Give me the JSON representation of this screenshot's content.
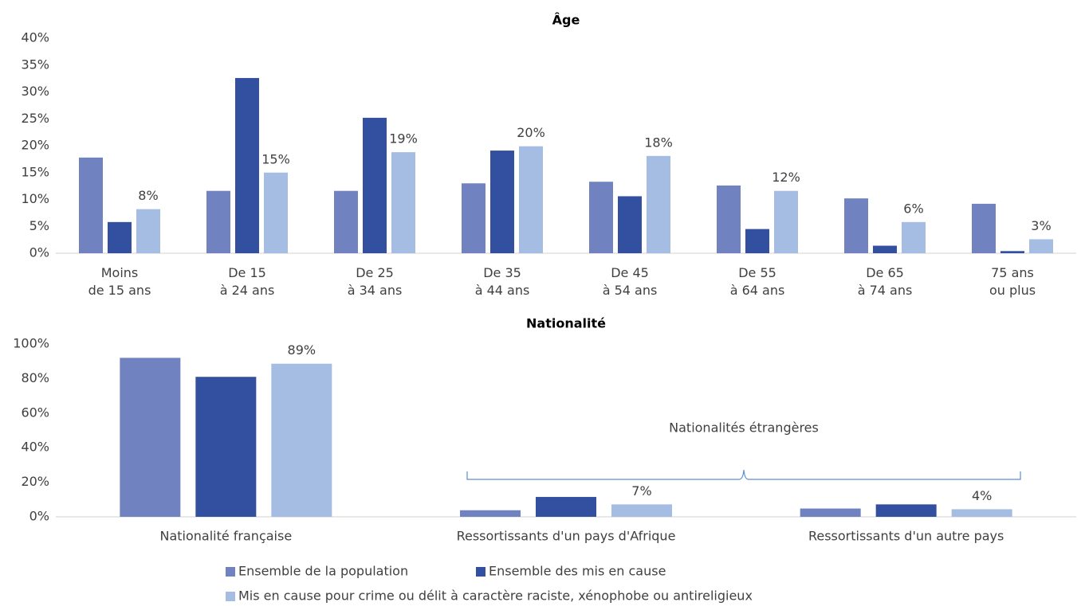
{
  "chart_data": [
    {
      "type": "bar",
      "title": "Âge",
      "categories": [
        "Moins\nde 15 ans",
        "De 15\nà 24 ans",
        "De 25\nà 34 ans",
        "De 35\nà 44 ans",
        "De 45\nà 54 ans",
        "De 55\nà 64 ans",
        "De 65\nà 74 ans",
        "75 ans\nou plus"
      ],
      "series": [
        {
          "name": "Ensemble de la population",
          "color": "#7082bf",
          "values": [
            17.8,
            11.6,
            11.6,
            13,
            13.3,
            12.6,
            10.2,
            9.2
          ]
        },
        {
          "name": "Ensemble des mis en cause",
          "color": "#334f9f",
          "values": [
            5.8,
            32.6,
            25.2,
            19.1,
            10.6,
            4.5,
            1.4,
            0.4
          ]
        },
        {
          "name": "Mis en cause pour crime ou délit à caractère raciste, xénophobe ou antireligieux",
          "color": "#a5bde3",
          "values": [
            8.2,
            15,
            18.8,
            19.9,
            18.1,
            11.6,
            5.8,
            2.6
          ],
          "value_labels": [
            "8%",
            "15%",
            "19%",
            "20%",
            "18%",
            "12%",
            "6%",
            "3%"
          ]
        }
      ],
      "ylim": [
        0,
        40
      ],
      "yticks": [
        {
          "value": 0,
          "label": "0%"
        },
        {
          "value": 5,
          "label": "5%"
        },
        {
          "value": 10,
          "label": "10%"
        },
        {
          "value": 15,
          "label": "15%"
        },
        {
          "value": 20,
          "label": "20%"
        },
        {
          "value": 25,
          "label": "25%"
        },
        {
          "value": 30,
          "label": "30%"
        },
        {
          "value": 35,
          "label": "35%"
        },
        {
          "value": 40,
          "label": "40%"
        }
      ],
      "grid": false
    },
    {
      "type": "bar",
      "title": "Nationalité",
      "categories": [
        "Nationalité française",
        "Ressortissants d'un pays d'Afrique",
        "Ressortissants d'un autre pays"
      ],
      "series": [
        {
          "color": "#7082bf",
          "values": [
            92,
            3.8,
            4.8
          ]
        },
        {
          "color": "#334f9f",
          "values": [
            81,
            11.5,
            7.2
          ]
        },
        {
          "color": "#a5bde3",
          "values": [
            88.6,
            7.2,
            4.4
          ],
          "value_labels": [
            "89%",
            "7%",
            "4%"
          ]
        }
      ],
      "annotation": "Nationalités étrangères",
      "ylim": [
        0,
        100
      ],
      "yticks": [
        {
          "value": 0,
          "label": "0%"
        },
        {
          "value": 20,
          "label": "20%"
        },
        {
          "value": 40,
          "label": "40%"
        },
        {
          "value": 60,
          "label": "60%"
        },
        {
          "value": 80,
          "label": "80%"
        },
        {
          "value": 100,
          "label": "100%"
        }
      ],
      "grid": false
    }
  ]
}
